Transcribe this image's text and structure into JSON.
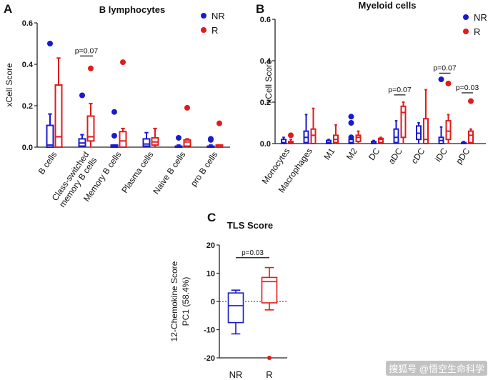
{
  "watermark": "搜狐号 @悟空生命科学",
  "colors": {
    "NR": "#1a1acd",
    "R": "#e01b1b"
  },
  "chart_data": [
    {
      "panel": "A",
      "type": "boxplot",
      "title": "B lymphocytes",
      "ylabel": "xCell Score",
      "ylim": [
        0,
        0.6
      ],
      "yticks": [
        "0.0",
        "0.2",
        "0.4",
        "0.6"
      ],
      "legend": [
        {
          "name": "NR",
          "color": "#1a1acd"
        },
        {
          "name": "R",
          "color": "#e01b1b"
        }
      ],
      "legend_position": "top-right",
      "categories": [
        "B cells",
        "Class-switched memory B cells",
        "Memory B cells",
        "Plasma cells",
        "Naive B cells",
        "pro B cells"
      ],
      "category_lines": [
        [
          "B cells"
        ],
        [
          "Class-switched",
          "memory B cells"
        ],
        [
          "Memory B cells"
        ],
        [
          "Plasma cells"
        ],
        [
          "Naive B cells"
        ],
        [
          "pro B cells"
        ]
      ],
      "series": [
        {
          "name": "NR",
          "boxes": [
            {
              "min": 0,
              "q1": 0,
              "median": 0.01,
              "q3": 0.105,
              "max": 0.16,
              "outliers": [
                0.5
              ]
            },
            {
              "min": 0,
              "q1": 0.005,
              "median": 0.02,
              "q3": 0.04,
              "max": 0.06,
              "outliers": [
                0.25
              ]
            },
            {
              "min": 0,
              "q1": 0,
              "median": 0.005,
              "q3": 0.01,
              "max": 0.01,
              "outliers": [
                0.17,
                0.055
              ]
            },
            {
              "min": 0,
              "q1": 0.005,
              "median": 0.015,
              "q3": 0.04,
              "max": 0.07,
              "outliers": []
            },
            {
              "min": 0,
              "q1": 0,
              "median": 0.002,
              "q3": 0.005,
              "max": 0.01,
              "outliers": [
                0.045
              ]
            },
            {
              "min": 0,
              "q1": 0,
              "median": 0.002,
              "q3": 0.005,
              "max": 0.01,
              "outliers": [
                0.04,
                0.035
              ]
            }
          ]
        },
        {
          "name": "R",
          "boxes": [
            {
              "min": 0,
              "q1": 0,
              "median": 0.05,
              "q3": 0.3,
              "max": 0.43,
              "outliers": []
            },
            {
              "min": 0,
              "q1": 0.03,
              "median": 0.05,
              "q3": 0.15,
              "max": 0.21,
              "outliers": [
                0.38
              ]
            },
            {
              "min": 0,
              "q1": 0,
              "median": 0.03,
              "q3": 0.075,
              "max": 0.09,
              "outliers": [
                0.41
              ]
            },
            {
              "min": 0,
              "q1": 0.01,
              "median": 0.025,
              "q3": 0.045,
              "max": 0.09,
              "outliers": []
            },
            {
              "min": 0,
              "q1": 0.005,
              "median": 0.025,
              "q3": 0.035,
              "max": 0.04,
              "outliers": [
                0.19
              ]
            },
            {
              "min": 0,
              "q1": 0,
              "median": 0.003,
              "q3": 0.01,
              "max": 0.01,
              "outliers": [
                0.115
              ]
            }
          ]
        }
      ],
      "annotations": [
        {
          "category_index": 1,
          "text": "p=0.07",
          "y": 0.44
        }
      ]
    },
    {
      "panel": "B",
      "type": "boxplot",
      "title": "Myeloid cells",
      "ylabel": "xCell Score",
      "ylim": [
        0,
        0.6
      ],
      "yticks": [
        "0.0",
        "0.2",
        "0.4",
        "0.6"
      ],
      "legend": [
        {
          "name": "NR",
          "color": "#1a1acd"
        },
        {
          "name": "R",
          "color": "#e01b1b"
        }
      ],
      "legend_position": "top-right",
      "categories": [
        "Monocytes",
        "Macrophages",
        "M1",
        "M2",
        "DC",
        "aDC",
        "cDC",
        "iDC",
        "pDC"
      ],
      "series": [
        {
          "name": "NR",
          "boxes": [
            {
              "min": 0,
              "q1": 0,
              "median": 0.005,
              "q3": 0.02,
              "max": 0.03,
              "outliers": []
            },
            {
              "min": 0,
              "q1": 0.005,
              "median": 0.03,
              "q3": 0.06,
              "max": 0.14,
              "outliers": []
            },
            {
              "min": 0,
              "q1": 0,
              "median": 0.005,
              "q3": 0.015,
              "max": 0.02,
              "outliers": []
            },
            {
              "min": 0,
              "q1": 0,
              "median": 0.005,
              "q3": 0.02,
              "max": 0.03,
              "outliers": [
                0.13,
                0.1,
                0.03
              ]
            },
            {
              "min": 0,
              "q1": 0,
              "median": 0.003,
              "q3": 0.01,
              "max": 0.015,
              "outliers": []
            },
            {
              "min": 0,
              "q1": 0.005,
              "median": 0.03,
              "q3": 0.07,
              "max": 0.11,
              "outliers": []
            },
            {
              "min": 0,
              "q1": 0.02,
              "median": 0.05,
              "q3": 0.085,
              "max": 0.1,
              "outliers": []
            },
            {
              "min": 0,
              "q1": 0,
              "median": 0.015,
              "q3": 0.03,
              "max": 0.08,
              "outliers": [
                0.31
              ]
            },
            {
              "min": 0,
              "q1": 0,
              "median": 0.003,
              "q3": 0.005,
              "max": 0.01,
              "outliers": []
            }
          ]
        },
        {
          "name": "R",
          "boxes": [
            {
              "min": 0,
              "q1": 0,
              "median": 0.005,
              "q3": 0.01,
              "max": 0.02,
              "outliers": [
                0.04
              ]
            },
            {
              "min": 0,
              "q1": 0,
              "median": 0.04,
              "q3": 0.07,
              "max": 0.17,
              "outliers": []
            },
            {
              "min": 0,
              "q1": 0.005,
              "median": 0.02,
              "q3": 0.04,
              "max": 0.09,
              "outliers": []
            },
            {
              "min": 0,
              "q1": 0.01,
              "median": 0.03,
              "q3": 0.04,
              "max": 0.06,
              "outliers": []
            },
            {
              "min": 0,
              "q1": 0.005,
              "median": 0.02,
              "q3": 0.025,
              "max": 0.03,
              "outliers": []
            },
            {
              "min": 0,
              "q1": 0.03,
              "median": 0.15,
              "q3": 0.18,
              "max": 0.2,
              "outliers": []
            },
            {
              "min": 0,
              "q1": 0,
              "median": 0.02,
              "q3": 0.12,
              "max": 0.26,
              "outliers": []
            },
            {
              "min": 0,
              "q1": 0.02,
              "median": 0.06,
              "q3": 0.11,
              "max": 0.14,
              "outliers": [
                0.29
              ]
            },
            {
              "min": 0,
              "q1": 0.005,
              "median": 0.04,
              "q3": 0.06,
              "max": 0.07,
              "outliers": [
                0.205
              ]
            }
          ]
        }
      ],
      "annotations": [
        {
          "category_index": 5,
          "text": "p=0.07",
          "y": 0.235
        },
        {
          "category_index": 7,
          "text": "p=0.07",
          "y": 0.34
        },
        {
          "category_index": 8,
          "text": "p=0.03",
          "y": 0.245
        }
      ]
    },
    {
      "panel": "C",
      "type": "boxplot",
      "title": "TLS Score",
      "ylabel_lines": [
        "12-Chemokine Score",
        "PC1 (58.4%)"
      ],
      "ylim": [
        -20,
        20
      ],
      "yticks": [
        "-20",
        "-10",
        "0",
        "10",
        "20"
      ],
      "reference_line": 0,
      "categories": [
        "NR",
        "R"
      ],
      "series": [
        {
          "name": "NR",
          "boxes": [
            {
              "min": -11.5,
              "q1": -7.5,
              "median": -1.5,
              "q3": 3,
              "max": 4,
              "outliers": []
            }
          ]
        },
        {
          "name": "R",
          "boxes": [
            {
              "min": -3,
              "q1": -0.5,
              "median": 7,
              "q3": 8.5,
              "max": 12,
              "outliers": [
                -20
              ]
            }
          ]
        }
      ],
      "annotations": [
        {
          "text": "p=0.03",
          "y": 15.5
        }
      ]
    }
  ]
}
